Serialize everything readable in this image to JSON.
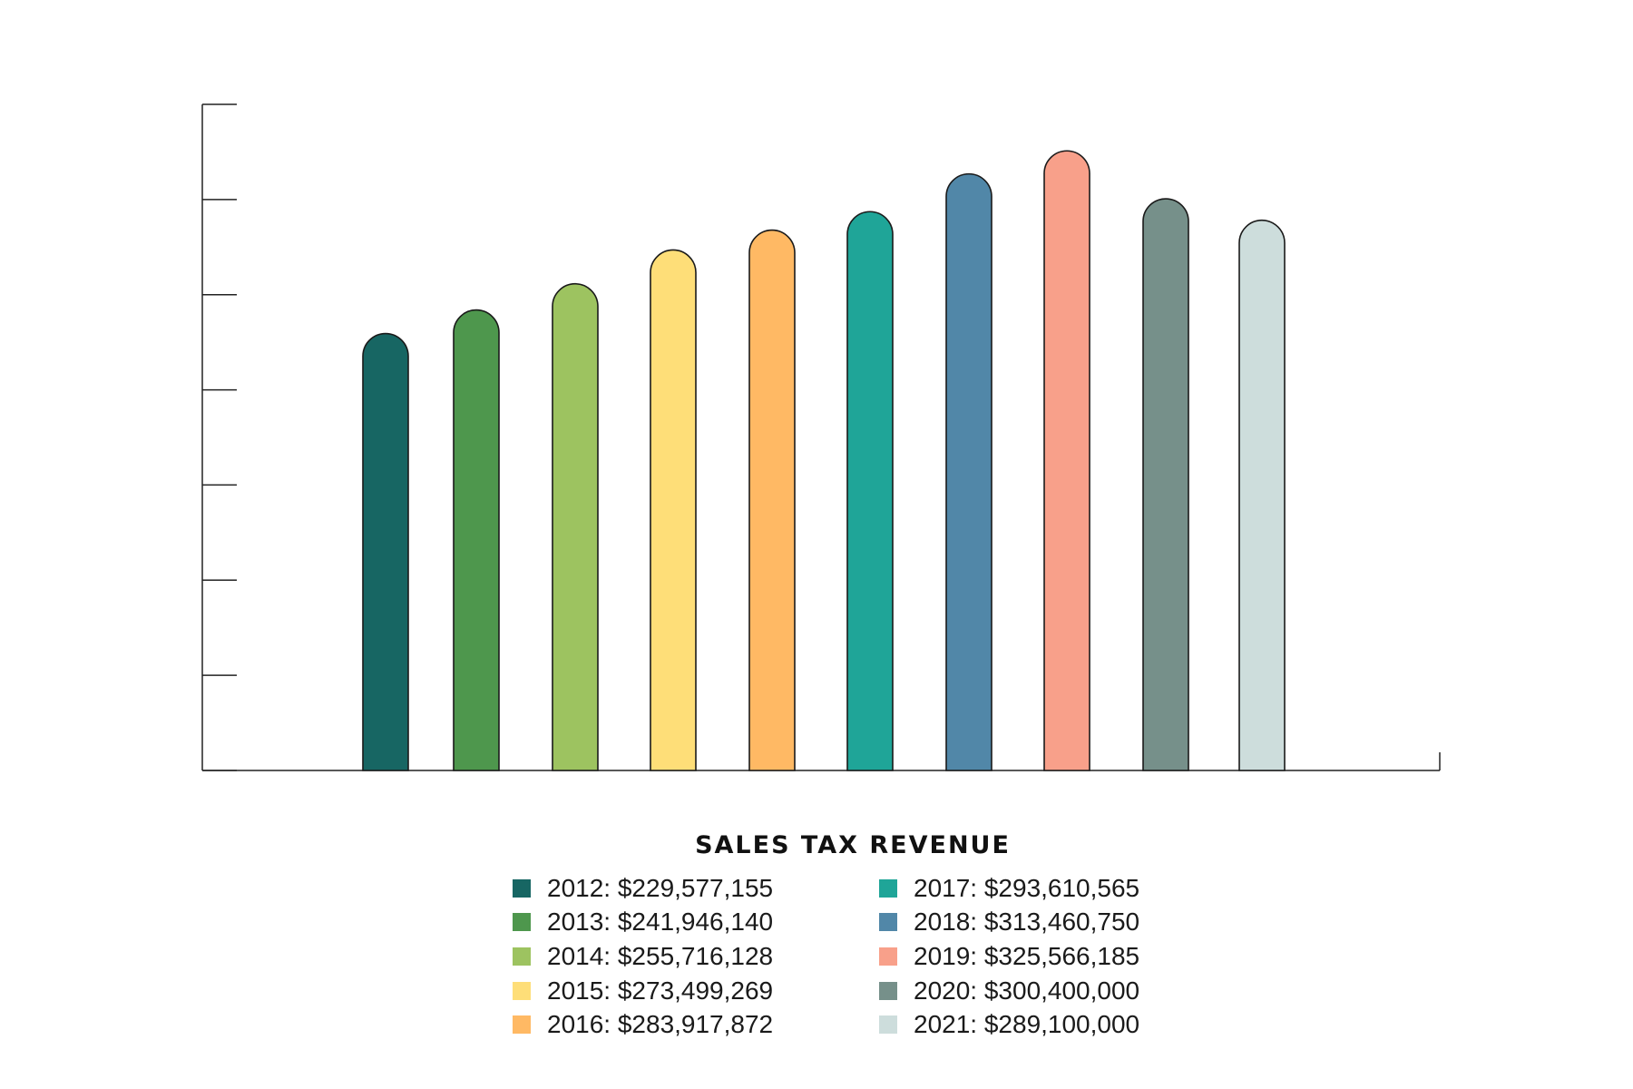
{
  "chart_data": {
    "type": "bar",
    "title": "SALES TAX REVENUE",
    "categories": [
      "2012",
      "2013",
      "2014",
      "2015",
      "2016",
      "2017",
      "2018",
      "2019",
      "2020",
      "2021"
    ],
    "values": [
      229577155,
      241946140,
      255716128,
      273499269,
      283917872,
      293610565,
      313460750,
      325566185,
      300400000,
      289100000
    ],
    "colors": [
      "#176663",
      "#4e974d",
      "#9dc360",
      "#fede78",
      "#ffb964",
      "#1fa598",
      "#5187a8",
      "#f8a08a",
      "#76908a",
      "#cddddc"
    ],
    "legend": [
      "2012: $229,577,155",
      "2013: $241,946,140",
      "2014: $255,716,128",
      "2015: $273,499,269",
      "2016: $283,917,872",
      "2017: $293,610,565",
      "2018: $313,460,750",
      "2019: $325,566,185",
      "2020: $300,400,000",
      "2021: $289,100,000"
    ],
    "ylim": [
      0,
      350000000
    ],
    "ytick_count": 8,
    "legend_position": "bottom",
    "grid": false
  }
}
